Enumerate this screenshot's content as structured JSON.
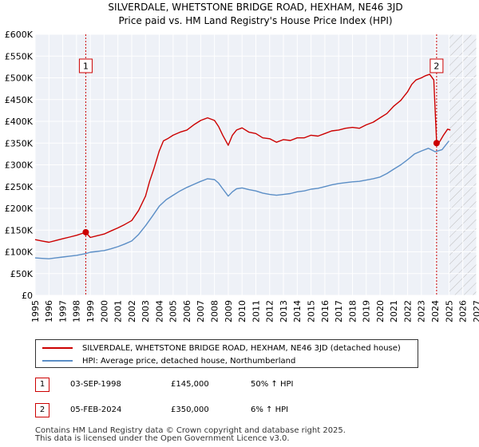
{
  "chart_data": {
    "type": "line",
    "title": "SILVERDALE, WHETSTONE BRIDGE ROAD, HEXHAM, NE46 3JD",
    "subtitle": "Price paid vs. HM Land Registry's House Price Index (HPI)",
    "xlim": [
      1995,
      2027
    ],
    "ylim": [
      0,
      600000
    ],
    "x_ticks": [
      "1995",
      "1996",
      "1997",
      "1998",
      "1999",
      "2000",
      "2001",
      "2002",
      "2003",
      "2004",
      "2005",
      "2006",
      "2007",
      "2008",
      "2009",
      "2010",
      "2011",
      "2012",
      "2013",
      "2014",
      "2015",
      "2016",
      "2017",
      "2018",
      "2019",
      "2020",
      "2021",
      "2022",
      "2023",
      "2024",
      "2025",
      "2026",
      "2027"
    ],
    "y_ticks": [
      {
        "value": 0,
        "label": "£0"
      },
      {
        "value": 50000,
        "label": "£50K"
      },
      {
        "value": 100000,
        "label": "£100K"
      },
      {
        "value": 150000,
        "label": "£150K"
      },
      {
        "value": 200000,
        "label": "£200K"
      },
      {
        "value": 250000,
        "label": "£250K"
      },
      {
        "value": 300000,
        "label": "£300K"
      },
      {
        "value": 350000,
        "label": "£350K"
      },
      {
        "value": 400000,
        "label": "£400K"
      },
      {
        "value": 450000,
        "label": "£450K"
      },
      {
        "value": 500000,
        "label": "£500K"
      },
      {
        "value": 550000,
        "label": "£550K"
      },
      {
        "value": 600000,
        "label": "£600K"
      }
    ],
    "future_hatch_from": 2025.0,
    "series": [
      {
        "name": "SILVERDALE, WHETSTONE BRIDGE ROAD, HEXHAM, NE46 3JD (detached house)",
        "color": "#cc0000",
        "x": [
          1995.0,
          1995.5,
          1996.0,
          1996.5,
          1997.0,
          1997.5,
          1998.0,
          1998.67,
          1999.0,
          1999.5,
          2000.0,
          2000.5,
          2001.0,
          2001.5,
          2002.0,
          2002.5,
          2003.0,
          2003.3,
          2003.6,
          2004.0,
          2004.3,
          2004.6,
          2005.0,
          2005.5,
          2006.0,
          2006.5,
          2007.0,
          2007.5,
          2008.0,
          2008.3,
          2008.6,
          2009.0,
          2009.3,
          2009.6,
          2010.0,
          2010.5,
          2011.0,
          2011.5,
          2012.0,
          2012.5,
          2013.0,
          2013.5,
          2014.0,
          2014.5,
          2015.0,
          2015.5,
          2016.0,
          2016.5,
          2017.0,
          2017.5,
          2018.0,
          2018.5,
          2019.0,
          2019.5,
          2020.0,
          2020.5,
          2021.0,
          2021.5,
          2022.0,
          2022.3,
          2022.6,
          2023.0,
          2023.3,
          2023.6,
          2023.9,
          2024.1,
          2024.3,
          2024.6,
          2024.9,
          2025.1
        ],
        "values": [
          128000,
          125000,
          122000,
          126000,
          130000,
          134000,
          138000,
          145000,
          133000,
          137000,
          141000,
          148000,
          155000,
          163000,
          172000,
          195000,
          228000,
          262000,
          290000,
          332000,
          355000,
          360000,
          368000,
          375000,
          380000,
          392000,
          402000,
          408000,
          402000,
          388000,
          368000,
          345000,
          368000,
          380000,
          385000,
          375000,
          372000,
          362000,
          360000,
          352000,
          358000,
          356000,
          362000,
          362000,
          368000,
          366000,
          372000,
          378000,
          380000,
          384000,
          386000,
          384000,
          392000,
          398000,
          408000,
          418000,
          435000,
          448000,
          468000,
          485000,
          495000,
          500000,
          505000,
          508000,
          495000,
          350000,
          352000,
          368000,
          382000,
          380000
        ]
      },
      {
        "name": "HPI: Average price, detached house, Northumberland",
        "color": "#5b8ec6",
        "x": [
          1995.0,
          1995.5,
          1996.0,
          1996.5,
          1997.0,
          1997.5,
          1998.0,
          1998.67,
          1999.0,
          1999.5,
          2000.0,
          2000.5,
          2001.0,
          2001.5,
          2002.0,
          2002.5,
          2003.0,
          2003.5,
          2004.0,
          2004.5,
          2005.0,
          2005.5,
          2006.0,
          2006.5,
          2007.0,
          2007.5,
          2008.0,
          2008.3,
          2008.6,
          2009.0,
          2009.3,
          2009.6,
          2010.0,
          2010.5,
          2011.0,
          2011.5,
          2012.0,
          2012.5,
          2013.0,
          2013.5,
          2014.0,
          2014.5,
          2015.0,
          2015.5,
          2016.0,
          2016.5,
          2017.0,
          2017.5,
          2018.0,
          2018.5,
          2019.0,
          2019.5,
          2020.0,
          2020.5,
          2021.0,
          2021.5,
          2022.0,
          2022.5,
          2023.0,
          2023.5,
          2024.0,
          2024.1,
          2024.5,
          2025.0
        ],
        "values": [
          86000,
          85000,
          84000,
          86000,
          88000,
          90000,
          92000,
          96000,
          99000,
          101000,
          103000,
          107000,
          112000,
          118000,
          125000,
          140000,
          160000,
          182000,
          205000,
          220000,
          230000,
          240000,
          248000,
          255000,
          262000,
          268000,
          266000,
          258000,
          245000,
          228000,
          238000,
          245000,
          247000,
          243000,
          240000,
          235000,
          232000,
          230000,
          232000,
          234000,
          238000,
          240000,
          244000,
          246000,
          250000,
          254000,
          257000,
          259000,
          261000,
          262000,
          265000,
          268000,
          272000,
          280000,
          290000,
          300000,
          312000,
          325000,
          332000,
          338000,
          330000,
          331000,
          335000,
          355000
        ]
      }
    ],
    "annotations": [
      {
        "label": "1",
        "x": 1998.67,
        "y": 145000,
        "color": "#cc0000"
      },
      {
        "label": "2",
        "x": 2024.1,
        "y": 350000,
        "color": "#cc0000"
      }
    ]
  },
  "legend": {
    "items": [
      {
        "label": "SILVERDALE, WHETSTONE BRIDGE ROAD, HEXHAM, NE46 3JD (detached house)",
        "color": "#cc0000"
      },
      {
        "label": "HPI: Average price, detached house, Northumberland",
        "color": "#5b8ec6"
      }
    ]
  },
  "transactions": [
    {
      "num": "1",
      "date": "03-SEP-1998",
      "price": "£145,000",
      "hpi": "50% ↑ HPI"
    },
    {
      "num": "2",
      "date": "05-FEB-2024",
      "price": "£350,000",
      "hpi": "6% ↑ HPI"
    }
  ],
  "footer": {
    "line1": "Contains HM Land Registry data © Crown copyright and database right 2025.",
    "line2": "This data is licensed under the Open Government Licence v3.0."
  }
}
